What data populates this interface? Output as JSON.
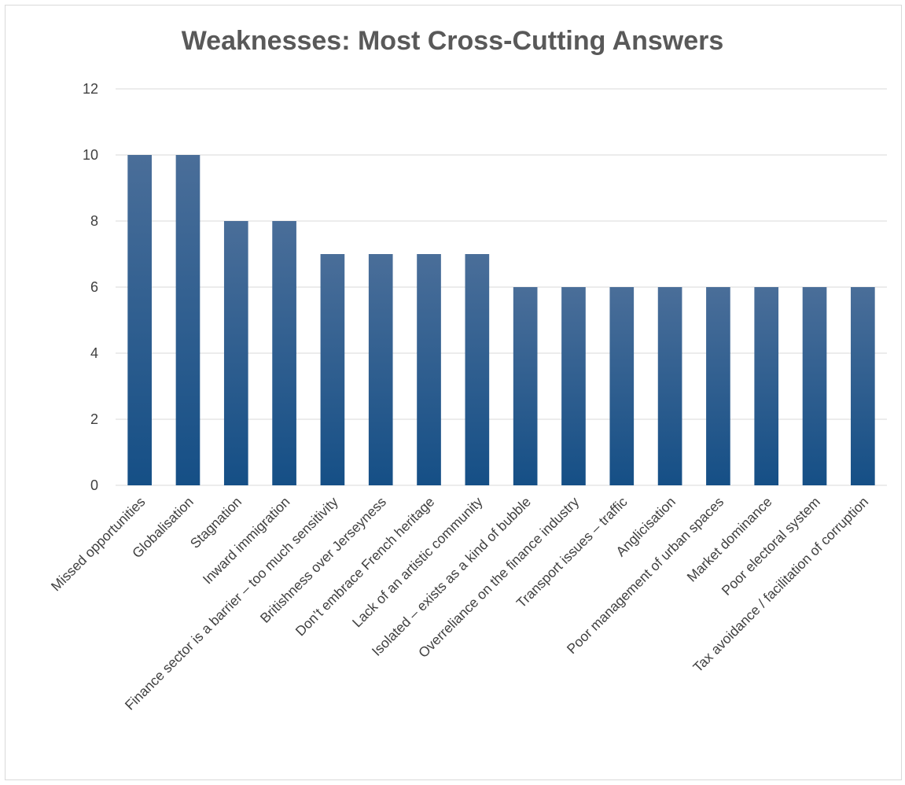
{
  "chart_data": {
    "type": "bar",
    "title": "Weaknesses: Most Cross-Cutting Answers",
    "xlabel": "",
    "ylabel": "",
    "ylim": [
      0,
      12
    ],
    "yticks": [
      0,
      2,
      4,
      6,
      8,
      10,
      12
    ],
    "grid": true,
    "legend": "none",
    "colors": {
      "bar_top": "#4a6e99",
      "bar_bottom": "#154f86",
      "grid": "#d9d9d9",
      "title": "#595959",
      "text": "#404040"
    },
    "categories": [
      "Missed opportunities",
      "Globalisation",
      "Stagnation",
      "Inward immigration",
      "Finance sector is a barrier – too much sensitivity",
      "Britishness over Jerseyness",
      "Don’t embrace French heritage",
      "Lack of an artistic community",
      "Isolated – exists as a kind of bubble",
      "Overreliance on the finance industry",
      "Transport issues – traffic",
      "Anglicisation",
      "Poor management of urban spaces",
      "Market dominance",
      "Poor electoral system",
      "Tax avoidance / facilitation of corruption"
    ],
    "values": [
      10,
      10,
      8,
      8,
      7,
      7,
      7,
      7,
      6,
      6,
      6,
      6,
      6,
      6,
      6,
      6
    ]
  }
}
